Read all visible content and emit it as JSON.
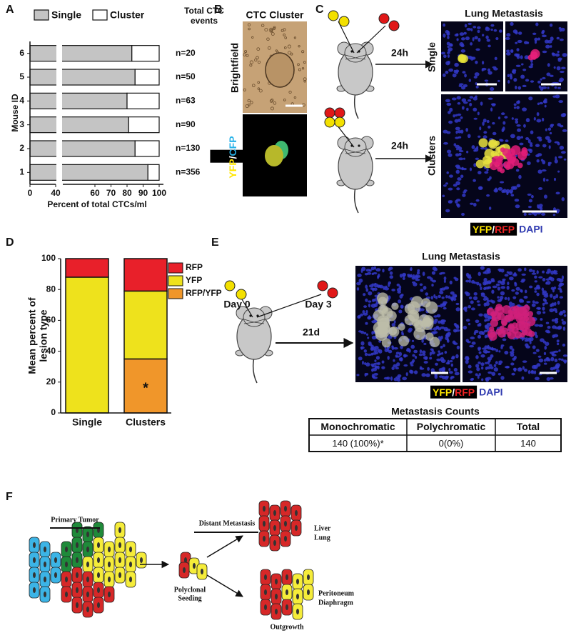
{
  "panel_labels": [
    "A",
    "B",
    "C",
    "D",
    "E",
    "F"
  ],
  "chart_data": [
    {
      "type": "hbar_stacked",
      "categories": [
        "1",
        "2",
        "3",
        "4",
        "5",
        "6"
      ],
      "series": [
        {
          "name": "Single",
          "color": "#c4c4c4",
          "values": [
            93,
            85,
            81,
            80,
            85,
            83
          ]
        },
        {
          "name": "Cluster",
          "color": "#ffffff",
          "values": [
            7,
            15,
            19,
            20,
            15,
            17
          ]
        }
      ],
      "xlim": [
        0,
        100
      ],
      "xbreak": 40,
      "xticks": [
        0,
        40,
        60,
        70,
        80,
        90,
        100
      ],
      "xlabel": "Percent of total CTCs/ml",
      "ylabel": "Mouse ID",
      "totals_title": [
        "Total CTC",
        "events"
      ],
      "totals": [
        "n=356",
        "n=130",
        "n=90",
        "n=63",
        "n=50",
        "n=20"
      ]
    },
    {
      "type": "bar_stacked",
      "categories": [
        "Single",
        "Clusters"
      ],
      "series": [
        {
          "name": "RFP/YFP",
          "color": "#f0962a",
          "values": [
            0,
            35
          ]
        },
        {
          "name": "YFP",
          "color": "#eee21c",
          "values": [
            88,
            44
          ]
        },
        {
          "name": "RFP",
          "color": "#e8202a",
          "values": [
            12,
            21
          ]
        }
      ],
      "ylim": [
        0,
        100
      ],
      "yticks": [
        0,
        20,
        40,
        60,
        80,
        100
      ],
      "ylabel": [
        "Mean percent of",
        "lesion type"
      ],
      "annotation": "*"
    }
  ],
  "panel_b": {
    "title": "CTC Cluster",
    "brightfield": "Brightfield",
    "stain": [
      "YFP",
      "/",
      "CFP"
    ]
  },
  "panel_c": {
    "title": "Lung Metastasis",
    "time": [
      "24h",
      "24h"
    ],
    "rows": [
      "Single",
      "Clusters"
    ],
    "stain": [
      "YFP",
      "/",
      "RFP"
    ],
    "counterstain": "DAPI"
  },
  "panel_e": {
    "title": "Lung Metastasis",
    "days": [
      "Day 0",
      "Day 3"
    ],
    "time": "21d",
    "stain": [
      "YFP",
      "/",
      "RFP"
    ],
    "counterstain": "DAPI",
    "table": {
      "title": "Metastasis Counts",
      "header": [
        "Monochromatic",
        "Polychromatic",
        "Total"
      ],
      "rows": [
        [
          "140 (100%)*",
          "0(0%)",
          "140"
        ]
      ]
    }
  },
  "panel_f": {
    "primary": "Primary Tumor",
    "distant": "Distant Metastasis",
    "seeding": [
      "Polyclonal",
      "Seeding"
    ],
    "site1": [
      "Liver",
      "Lung"
    ],
    "site2": [
      "Peritoneum",
      "Diaphragm"
    ],
    "outgrowth": "Outgrowth"
  }
}
